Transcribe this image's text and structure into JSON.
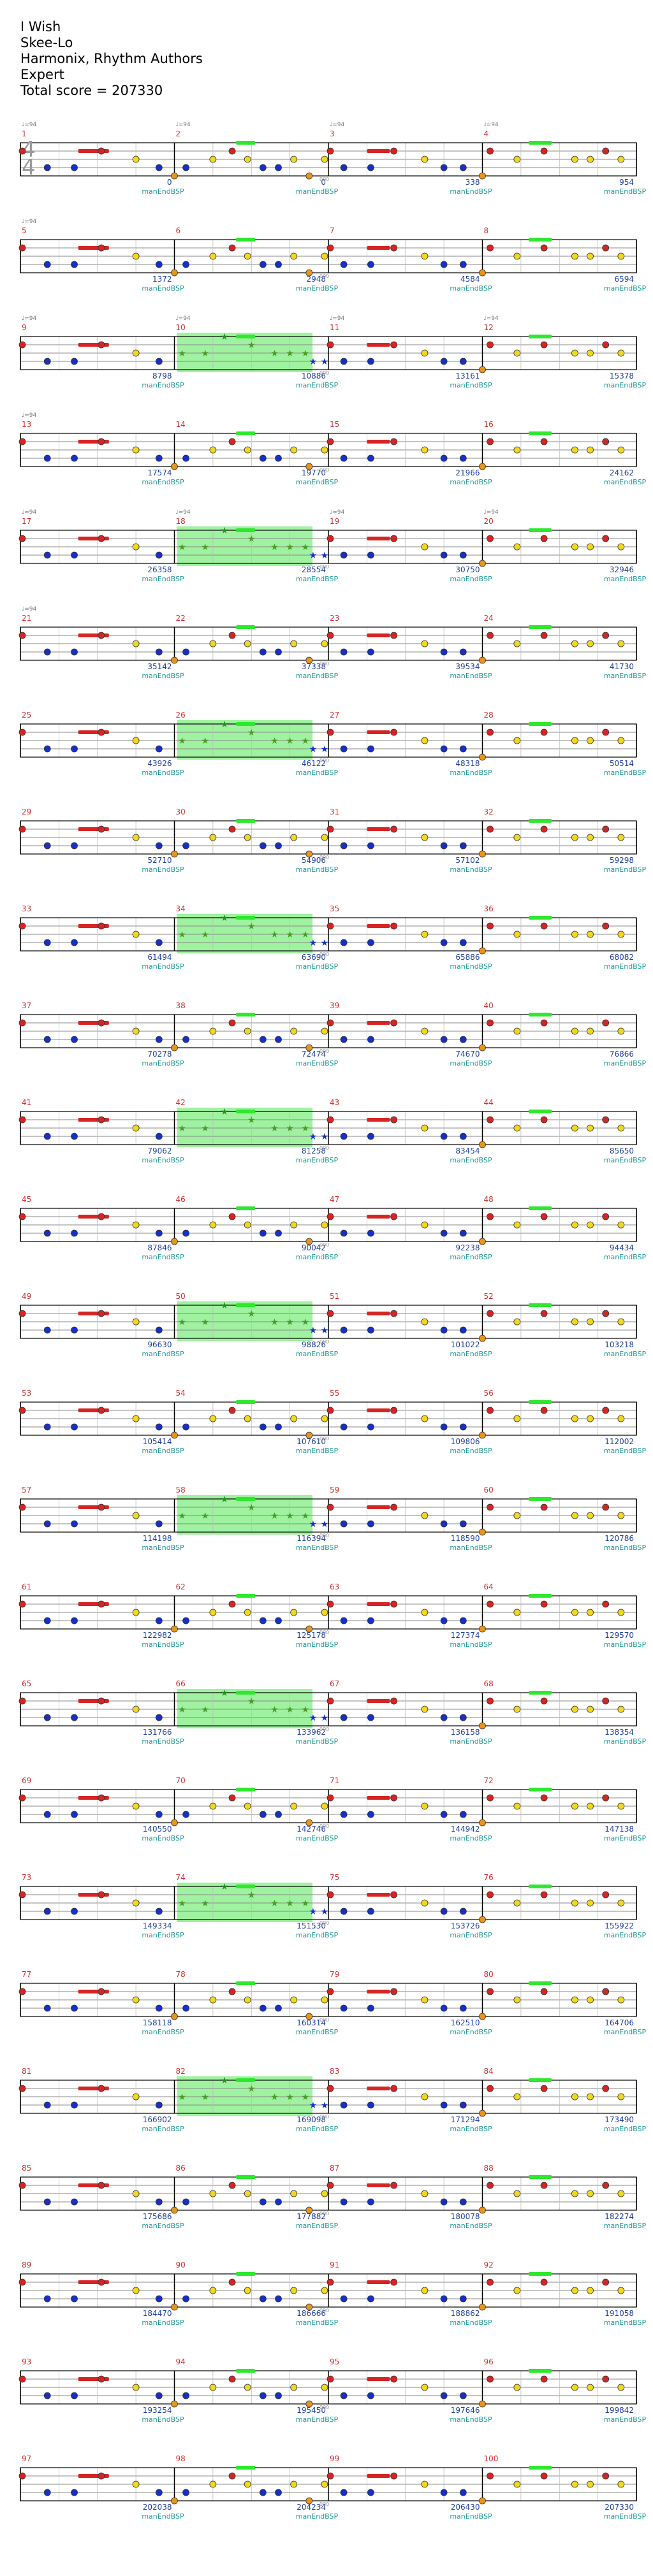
{
  "header": {
    "song": "I Wish",
    "artist": "Skee-Lo",
    "authors": "Harmonix, Rhythm Authors",
    "difficulty": "Expert",
    "total": "Total score = 207330"
  },
  "time_signature": {
    "top": "4",
    "bottom": "4"
  },
  "tempo_label": "♩=94",
  "lane_label": "manEndBSP",
  "colors": {
    "red": "#d62424",
    "yellow": "#f2d81a",
    "blue": "#1430c8",
    "orange": "#e8951a",
    "green": "#2ee82e",
    "overdrive": "#8ef08e"
  },
  "scores": [
    0,
    0,
    338,
    954,
    1372,
    2948,
    4584,
    6594,
    8798,
    10886,
    13161,
    15378,
    17574,
    19770,
    21966,
    24162,
    26358,
    28554,
    30750,
    32946,
    35142,
    37338,
    39534,
    41730,
    43926,
    46122,
    48318,
    50514,
    52710,
    54906,
    57102,
    59298,
    61494,
    63690,
    65886,
    68082,
    70278,
    72474,
    74670,
    76866,
    79062,
    81258,
    83454,
    85650,
    87846,
    90042,
    92238,
    94434,
    96630,
    98826,
    101022,
    103218,
    105414,
    107610,
    109806,
    112002,
    114198,
    116394,
    118590,
    120786,
    122982,
    125178,
    127374,
    129570,
    131766,
    133962,
    136158,
    138354,
    140550,
    142746,
    144942,
    147138,
    149334,
    151530,
    153726,
    155922,
    158118,
    160314,
    162510,
    164706,
    166902,
    169098,
    171294,
    173490,
    175686,
    177882,
    180078,
    182274,
    184470,
    186666,
    188862,
    191058,
    193254,
    195450,
    197646,
    199842,
    202038,
    204234,
    206430,
    207330
  ],
  "overdrive_rows": [
    2,
    4,
    6,
    8,
    10,
    12,
    14,
    16,
    18,
    20
  ]
}
